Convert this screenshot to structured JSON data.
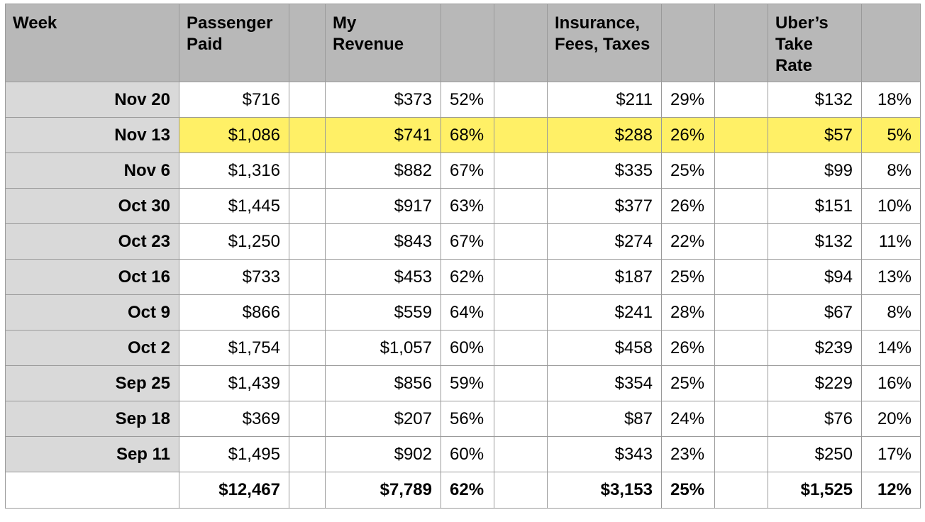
{
  "headers": {
    "week": "Week",
    "passenger_paid": "Passenger Paid",
    "my_revenue": "My Revenue",
    "insurance": "Insurance, Fees, Taxes",
    "uber_take": "Uber’s Take Rate"
  },
  "highlight_color": "#fff066",
  "rows": [
    {
      "week": "Nov 20",
      "passenger": "$716",
      "revenue": "$373",
      "revenue_pct": "52%",
      "insurance": "$211",
      "insurance_pct": "29%",
      "uber": "$132",
      "uber_pct": "18%"
    },
    {
      "week": "Nov 13",
      "passenger": "$1,086",
      "revenue": "$741",
      "revenue_pct": "68%",
      "insurance": "$288",
      "insurance_pct": "26%",
      "uber": "$57",
      "uber_pct": "5%"
    },
    {
      "week": "Nov 6",
      "passenger": "$1,316",
      "revenue": "$882",
      "revenue_pct": "67%",
      "insurance": "$335",
      "insurance_pct": "25%",
      "uber": "$99",
      "uber_pct": "8%"
    },
    {
      "week": "Oct 30",
      "passenger": "$1,445",
      "revenue": "$917",
      "revenue_pct": "63%",
      "insurance": "$377",
      "insurance_pct": "26%",
      "uber": "$151",
      "uber_pct": "10%"
    },
    {
      "week": "Oct 23",
      "passenger": "$1,250",
      "revenue": "$843",
      "revenue_pct": "67%",
      "insurance": "$274",
      "insurance_pct": "22%",
      "uber": "$132",
      "uber_pct": "11%"
    },
    {
      "week": "Oct 16",
      "passenger": "$733",
      "revenue": "$453",
      "revenue_pct": "62%",
      "insurance": "$187",
      "insurance_pct": "25%",
      "uber": "$94",
      "uber_pct": "13%"
    },
    {
      "week": "Oct 9",
      "passenger": "$866",
      "revenue": "$559",
      "revenue_pct": "64%",
      "insurance": "$241",
      "insurance_pct": "28%",
      "uber": "$67",
      "uber_pct": "8%"
    },
    {
      "week": "Oct 2",
      "passenger": "$1,754",
      "revenue": "$1,057",
      "revenue_pct": "60%",
      "insurance": "$458",
      "insurance_pct": "26%",
      "uber": "$239",
      "uber_pct": "14%"
    },
    {
      "week": "Sep 25",
      "passenger": "$1,439",
      "revenue": "$856",
      "revenue_pct": "59%",
      "insurance": "$354",
      "insurance_pct": "25%",
      "uber": "$229",
      "uber_pct": "16%"
    },
    {
      "week": "Sep 18",
      "passenger": "$369",
      "revenue": "$207",
      "revenue_pct": "56%",
      "insurance": "$87",
      "insurance_pct": "24%",
      "uber": "$76",
      "uber_pct": "20%"
    },
    {
      "week": "Sep 11",
      "passenger": "$1,495",
      "revenue": "$902",
      "revenue_pct": "60%",
      "insurance": "$343",
      "insurance_pct": "23%",
      "uber": "$250",
      "uber_pct": "17%"
    }
  ],
  "highlighted_row": 1,
  "totals": {
    "passenger": "$12,467",
    "revenue": "$7,789",
    "revenue_pct": "62%",
    "insurance": "$3,153",
    "insurance_pct": "25%",
    "uber": "$1,525",
    "uber_pct": "12%"
  }
}
